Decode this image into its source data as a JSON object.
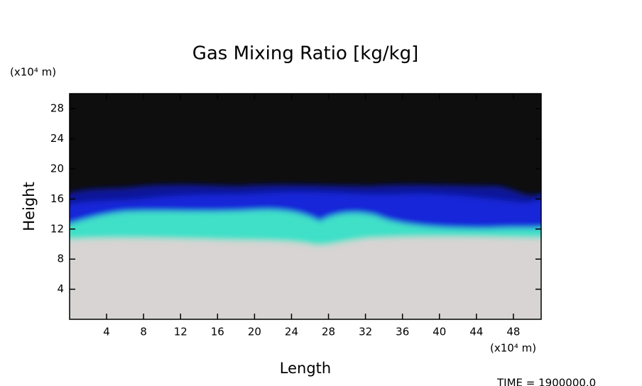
{
  "chart_data": {
    "type": "field",
    "title": "Gas Mixing Ratio [kg/kg]",
    "x_label": "Length",
    "y_label": "Height",
    "x_unit": "(x10⁴ m)",
    "y_unit": "(x10⁴ m)",
    "footer": "TIME =  1900000.0",
    "xlim": [
      0,
      51
    ],
    "ylim": [
      0,
      30
    ],
    "xticks": [
      4,
      8,
      12,
      16,
      20,
      24,
      28,
      32,
      36,
      40,
      44,
      48
    ],
    "yticks": [
      4,
      8,
      12,
      16,
      20,
      24,
      28
    ]
  }
}
